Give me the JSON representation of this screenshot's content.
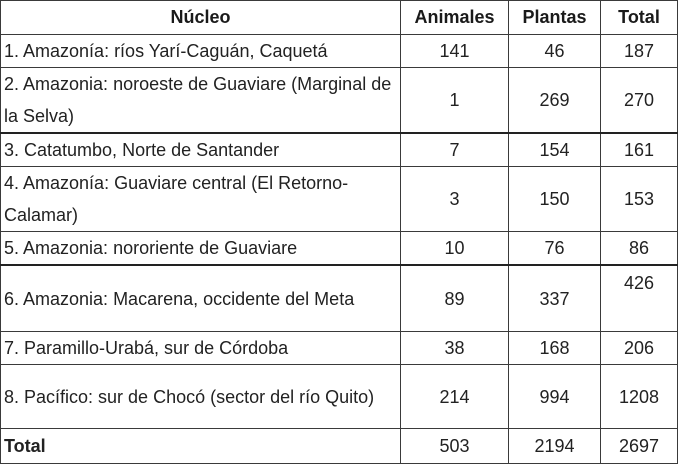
{
  "table": {
    "headers": [
      "Núcleo",
      "Animales",
      "Plantas",
      "Total"
    ],
    "rows": [
      {
        "nucleo": "1. Amazonía: ríos Yarí-Caguán, Caquetá",
        "animales": "141",
        "plantas": "46",
        "total": "187"
      },
      {
        "nucleo": "2. Amazonia: noroeste de Guaviare (Marginal de la Selva)",
        "animales": "1",
        "plantas": "269",
        "total": "270"
      },
      {
        "nucleo": "3. Catatumbo, Norte de Santander",
        "animales": "7",
        "plantas": "154",
        "total": "161"
      },
      {
        "nucleo": "4. Amazonía: Guaviare central (El Retorno-Calamar)",
        "animales": "3",
        "plantas": "150",
        "total": "153"
      },
      {
        "nucleo": "5. Amazonia: nororiente de Guaviare",
        "animales": "10",
        "plantas": "76",
        "total": "86"
      },
      {
        "nucleo": "6. Amazonia: Macarena, occidente del Meta",
        "animales": "89",
        "plantas": "337",
        "total": "426"
      },
      {
        "nucleo": "7. Paramillo-Urabá, sur de Córdoba",
        "animales": "38",
        "plantas": "168",
        "total": "206"
      },
      {
        "nucleo": "8. Pacífico: sur de Chocó (sector del río Quito)",
        "animales": "214",
        "plantas": "994",
        "total": "1208"
      }
    ],
    "totals": {
      "label": "Total",
      "animales": "503",
      "plantas": "2194",
      "total": "2697"
    }
  }
}
